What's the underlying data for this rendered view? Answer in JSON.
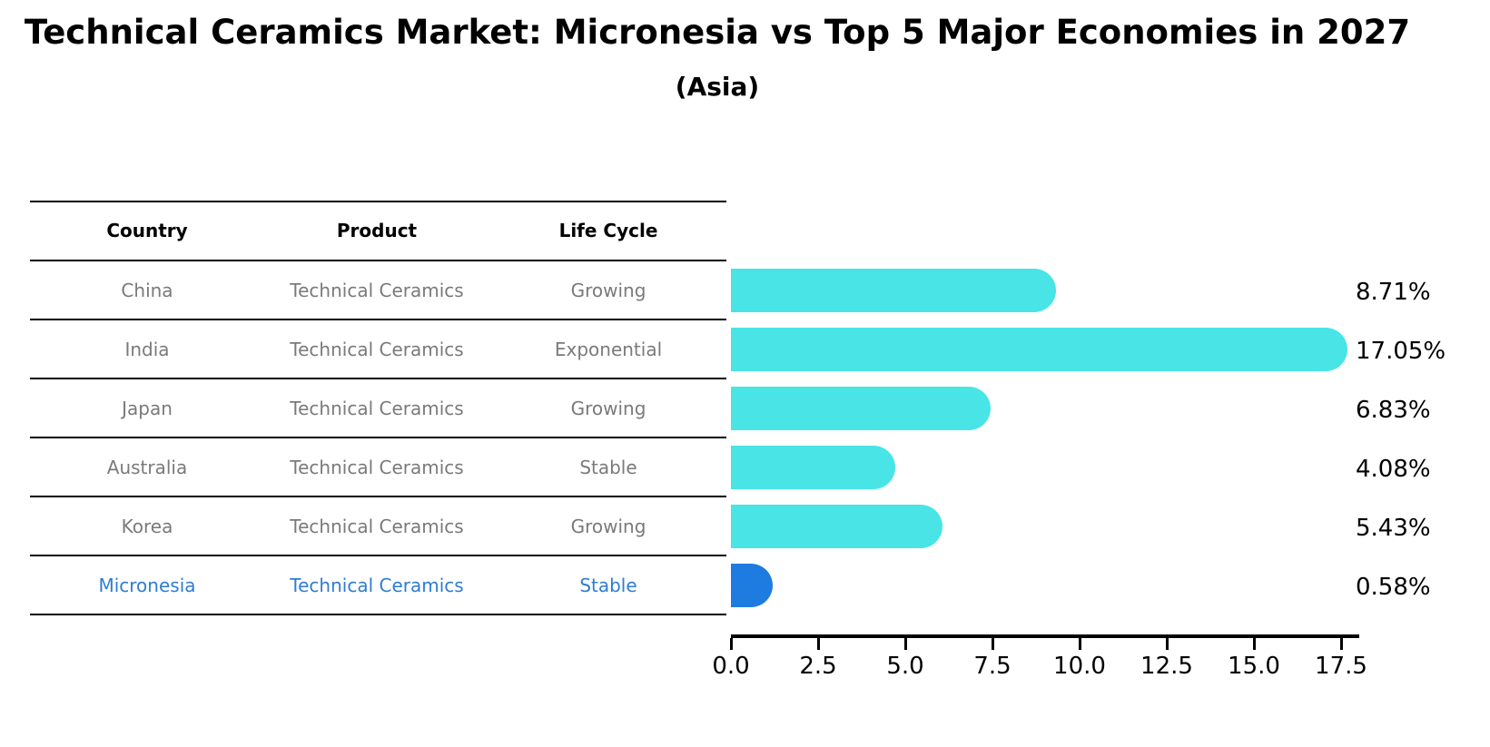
{
  "title": "Technical Ceramics Market: Micronesia vs Top 5 Major Economies in 2027",
  "subtitle": "(Asia)",
  "table": {
    "headers": [
      "Country",
      "Product",
      "Life Cycle"
    ],
    "rows": [
      {
        "country": "China",
        "product": "Technical Ceramics",
        "life_cycle": "Growing",
        "highlight": false
      },
      {
        "country": "India",
        "product": "Technical Ceramics",
        "life_cycle": "Exponential",
        "highlight": false
      },
      {
        "country": "Japan",
        "product": "Technical Ceramics",
        "life_cycle": "Growing",
        "highlight": false
      },
      {
        "country": "Australia",
        "product": "Technical Ceramics",
        "life_cycle": "Stable",
        "highlight": false
      },
      {
        "country": "Korea",
        "product": "Technical Ceramics",
        "life_cycle": "Growing",
        "highlight": false
      },
      {
        "country": "Micronesia",
        "product": "Technical Ceramics",
        "life_cycle": "Stable",
        "highlight": true
      }
    ]
  },
  "chart_data": {
    "type": "bar",
    "orientation": "horizontal",
    "title": "Technical Ceramics Market: Micronesia vs Top 5 Major Economies in 2027 (Asia)",
    "categories": [
      "China",
      "India",
      "Japan",
      "Australia",
      "Korea",
      "Micronesia"
    ],
    "values": [
      8.71,
      17.05,
      6.83,
      4.08,
      5.43,
      0.58
    ],
    "value_labels": [
      "8.71%",
      "17.05%",
      "6.83%",
      "4.08%",
      "5.43%",
      "0.58%"
    ],
    "xlabel": "",
    "ylabel": "",
    "xlim": [
      0,
      18
    ],
    "x_tick_values": [
      0,
      2.5,
      5,
      7.5,
      10,
      12.5,
      15,
      17.5
    ],
    "x_tick_labels": [
      "0.0",
      "2.5",
      "5.0",
      "7.5",
      "10.0",
      "12.5",
      "15.0",
      "17.5"
    ],
    "grid": false,
    "legend": null,
    "bar_color": "#48E4E6",
    "highlight_bar_color": "#1E7BE0",
    "highlight_index": 5
  },
  "colors": {
    "highlight_text": "#2E7DD2",
    "table_text": "#7A7A7A",
    "header_text": "#000000",
    "axis": "#000000"
  }
}
